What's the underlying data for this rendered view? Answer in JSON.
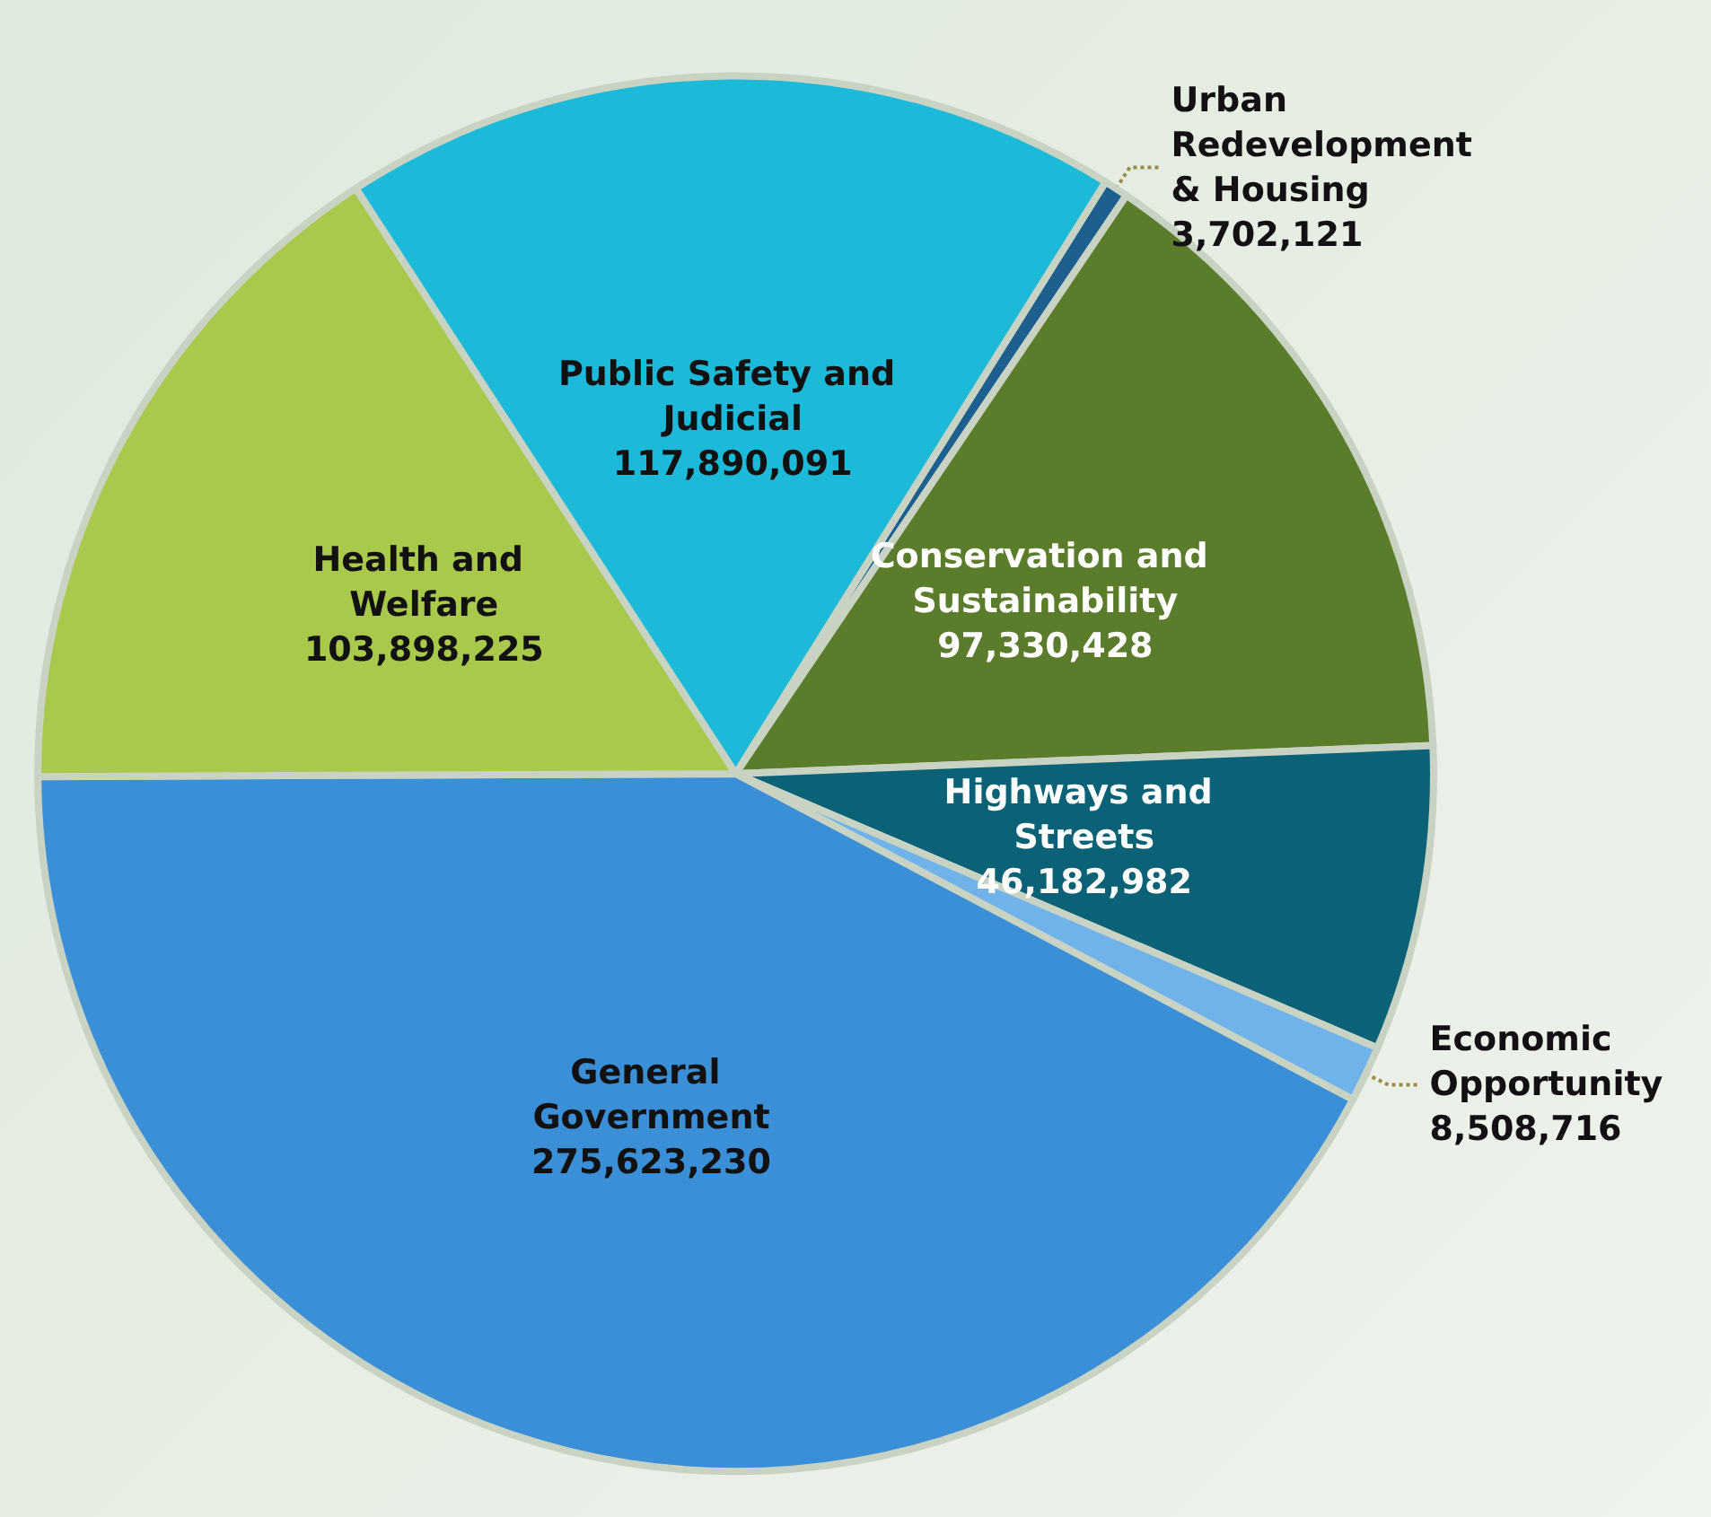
{
  "chart_data": {
    "type": "pie",
    "categories": [
      "Urban Redevelopment & Housing",
      "Conservation and Sustainability",
      "Highways and Streets",
      "Economic Opportunity",
      "General Government",
      "Health and Welfare",
      "Public Safety and Judicial"
    ],
    "values": [
      3702121,
      97330428,
      46182982,
      8508716,
      275623230,
      103898225,
      117890091
    ],
    "colors": [
      "#1d5f8e",
      "#5b7c2b",
      "#0b6277",
      "#6fb3ea",
      "#3a8fd6",
      "#a8c94c",
      "#1cb9d9"
    ],
    "value_labels": [
      "3,702,121",
      "97,330,428",
      "46,182,982",
      "8,508,716",
      "275,623,230",
      "103,898,225",
      "117,890,091"
    ],
    "legend": false
  }
}
